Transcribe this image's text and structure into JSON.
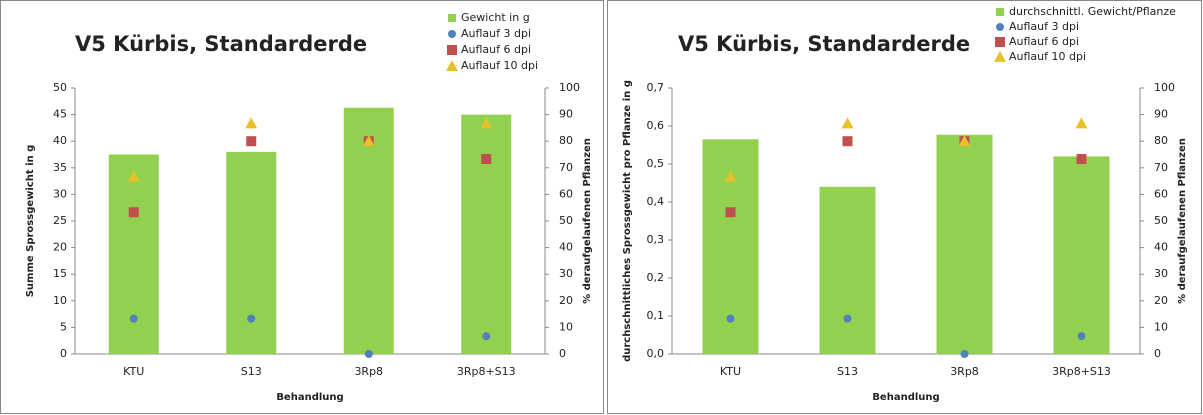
{
  "chart_data": [
    {
      "type": "bar",
      "title": "V5 Kürbis, Standarderde",
      "x_label": "Behandlung",
      "y_label": "Summe Sprossgewicht in g",
      "y2_label": "% deraufgelaufenen Pflanzen",
      "categories": [
        "KTU",
        "S13",
        "3Rp8",
        "3Rp8+S13"
      ],
      "ylim": [
        0,
        50
      ],
      "yticks": [
        0,
        5,
        10,
        15,
        20,
        25,
        30,
        35,
        40,
        45,
        50
      ],
      "y2lim": [
        0,
        100
      ],
      "y2ticks": [
        0,
        10,
        20,
        30,
        40,
        50,
        60,
        70,
        80,
        90,
        100
      ],
      "series": [
        {
          "name": "Gewicht in g",
          "color": "#92d050",
          "values": [
            37.5,
            38,
            46.3,
            45
          ]
        },
        {
          "name": "Auflauf 3 dpi",
          "color": "#4f81bd",
          "marker": "circle",
          "axis": "y2",
          "values": [
            13.3,
            13.3,
            0,
            6.7
          ]
        },
        {
          "name": "Auflauf 6 dpi",
          "color": "#c0504d",
          "marker": "square",
          "axis": "y2",
          "values": [
            53.3,
            80,
            80,
            73.3
          ]
        },
        {
          "name": "Auflauf 10 dpi",
          "color": "#e6c12a",
          "marker": "triangle",
          "axis": "y2",
          "values": [
            66.7,
            86.7,
            80,
            86.7
          ]
        }
      ]
    },
    {
      "type": "bar",
      "title": "V5 Kürbis, Standarderde",
      "x_label": "Behandlung",
      "y_label": "durchschnittliches Sprossgewicht pro Pflanze in g",
      "y2_label": "% deraufgelaufenen Pflanzen",
      "categories": [
        "KTU",
        "S13",
        "3Rp8",
        "3Rp8+S13"
      ],
      "ylim": [
        0,
        0.7
      ],
      "yticks": [
        {
          "value": 0,
          "label": "0,0"
        },
        {
          "value": 0.1,
          "label": "0,1"
        },
        {
          "value": 0.2,
          "label": "0,2"
        },
        {
          "value": 0.3,
          "label": "0,3"
        },
        {
          "value": 0.4,
          "label": "0,4"
        },
        {
          "value": 0.5,
          "label": "0,5"
        },
        {
          "value": 0.6,
          "label": "0,6"
        },
        {
          "value": 0.7,
          "label": "0,7"
        }
      ],
      "y2lim": [
        0,
        100
      ],
      "y2ticks": [
        0,
        10,
        20,
        30,
        40,
        50,
        60,
        70,
        80,
        90,
        100
      ],
      "series": [
        {
          "name": "durchschnittl. Gewicht/Pflanze",
          "color": "#92d050",
          "values": [
            0.565,
            0.44,
            0.577,
            0.52
          ]
        },
        {
          "name": "Auflauf 3 dpi",
          "color": "#4f81bd",
          "marker": "circle",
          "axis": "y2",
          "values": [
            13.3,
            13.3,
            0,
            6.7
          ]
        },
        {
          "name": "Auflauf 6 dpi",
          "color": "#c0504d",
          "marker": "square",
          "axis": "y2",
          "values": [
            53.3,
            80,
            80,
            73.3
          ]
        },
        {
          "name": "Auflauf 10 dpi",
          "color": "#e6c12a",
          "marker": "triangle",
          "axis": "y2",
          "values": [
            66.7,
            86.7,
            80,
            86.7
          ]
        }
      ]
    }
  ]
}
